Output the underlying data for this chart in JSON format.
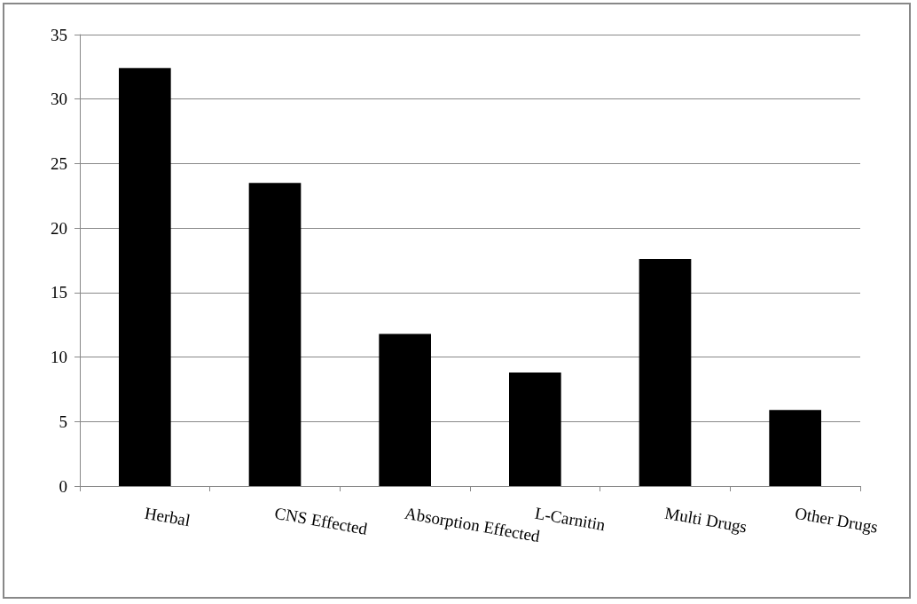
{
  "chart_data": {
    "type": "bar",
    "categories": [
      "Herbal",
      "CNS Effected",
      "Absorption Effected",
      "L-Carnitin",
      "Multi Drugs",
      "Other Drugs"
    ],
    "values": [
      32.4,
      23.5,
      11.8,
      8.8,
      17.6,
      5.9
    ],
    "color": "#000000",
    "ylim": [
      0,
      35
    ],
    "yticks": [
      0,
      5,
      10,
      15,
      20,
      25,
      30,
      35
    ],
    "grid": "y"
  }
}
